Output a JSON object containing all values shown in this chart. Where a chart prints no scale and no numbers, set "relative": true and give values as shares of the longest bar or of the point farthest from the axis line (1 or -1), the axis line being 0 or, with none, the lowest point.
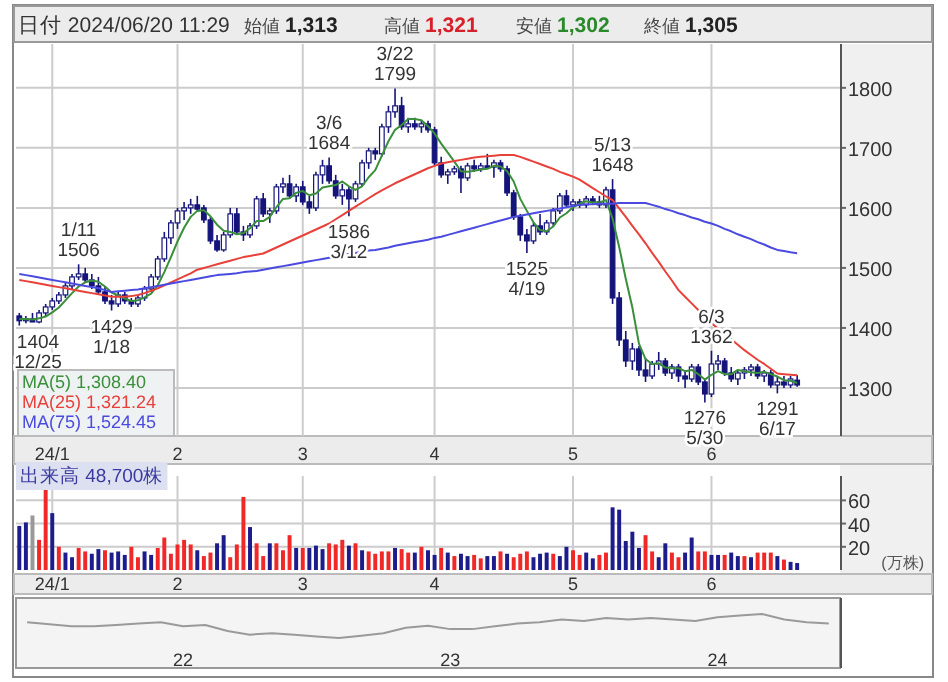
{
  "chart_data": [
    {
      "type": "candlestick",
      "title": "日付 2024/06/20 11:29",
      "grid": true,
      "legend": "bottom left",
      "ylim": [
        1220,
        1873
      ],
      "yticks": [
        1300,
        1400,
        1500,
        1600,
        1700,
        1800
      ],
      "color": "#14147a",
      "annotations": [
        "始値 1,313",
        "高値 1,321",
        "安値 1,302",
        "終値 1,305",
        {
          "text": "1404\n12/25",
          "y": 1404
        },
        {
          "text": "1/11\n1506",
          "y": 1506
        },
        {
          "text": "1429\n1/18",
          "y": 1429
        },
        {
          "text": "3/6\n1684",
          "y": 1684
        },
        {
          "text": "1586\n3/12",
          "y": 1586
        },
        {
          "text": "3/22\n1799",
          "y": 1799
        },
        {
          "text": "1525\n4/19",
          "y": 1525
        },
        {
          "text": "5/13\n1648",
          "y": 1648
        },
        {
          "text": "1276\n5/30",
          "y": 1276
        },
        {
          "text": "6/3\n1362",
          "y": 1362
        },
        {
          "text": "1291\n6/17",
          "y": 1291
        }
      ],
      "categories": [
        null,
        null,
        null,
        null,
        null,
        "24/1",
        null,
        null,
        null,
        null,
        null,
        null,
        null,
        null,
        null,
        null,
        null,
        null,
        null,
        null,
        null,
        null,
        null,
        null,
        "2",
        null,
        null,
        null,
        null,
        null,
        null,
        null,
        null,
        null,
        null,
        null,
        null,
        null,
        null,
        null,
        null,
        null,
        null,
        "3",
        null,
        null,
        null,
        null,
        null,
        null,
        null,
        null,
        null,
        null,
        null,
        null,
        null,
        null,
        null,
        null,
        null,
        null,
        null,
        "4",
        null,
        null,
        null,
        null,
        null,
        null,
        null,
        null,
        null,
        null,
        null,
        null,
        null,
        null,
        null,
        null,
        null,
        null,
        null,
        null,
        "5",
        null,
        null,
        null,
        null,
        null,
        null,
        null,
        null,
        null,
        null,
        null,
        null,
        null,
        null,
        null,
        null,
        null,
        null,
        null,
        null,
        "6",
        null,
        null,
        null,
        null,
        null,
        null,
        null,
        null,
        null,
        null,
        null,
        null,
        null
      ],
      "ohlc": [
        [
          1420,
          1425,
          1404,
          1412
        ],
        [
          1412,
          1420,
          1408,
          1415
        ],
        [
          1415,
          1425,
          1410,
          1410
        ],
        [
          1410,
          1430,
          1408,
          1425
        ],
        [
          1425,
          1440,
          1420,
          1435
        ],
        [
          1435,
          1450,
          1430,
          1445
        ],
        [
          1445,
          1460,
          1440,
          1455
        ],
        [
          1455,
          1475,
          1450,
          1470
        ],
        [
          1470,
          1490,
          1465,
          1485
        ],
        [
          1485,
          1506,
          1480,
          1490
        ],
        [
          1490,
          1500,
          1475,
          1480
        ],
        [
          1480,
          1490,
          1465,
          1470
        ],
        [
          1470,
          1485,
          1455,
          1460
        ],
        [
          1460,
          1470,
          1440,
          1445
        ],
        [
          1445,
          1455,
          1429,
          1440
        ],
        [
          1440,
          1460,
          1435,
          1455
        ],
        [
          1455,
          1460,
          1440,
          1445
        ],
        [
          1445,
          1450,
          1435,
          1440
        ],
        [
          1440,
          1455,
          1435,
          1450
        ],
        [
          1450,
          1470,
          1445,
          1465
        ],
        [
          1465,
          1490,
          1460,
          1485
        ],
        [
          1485,
          1520,
          1480,
          1515
        ],
        [
          1515,
          1560,
          1510,
          1550
        ],
        [
          1550,
          1580,
          1540,
          1575
        ],
        [
          1575,
          1600,
          1565,
          1595
        ],
        [
          1595,
          1610,
          1580,
          1600
        ],
        [
          1600,
          1615,
          1590,
          1605
        ],
        [
          1605,
          1620,
          1595,
          1598
        ],
        [
          1600,
          1605,
          1575,
          1580
        ],
        [
          1580,
          1585,
          1540,
          1545
        ],
        [
          1545,
          1555,
          1527,
          1530
        ],
        [
          1530,
          1560,
          1527,
          1555
        ],
        [
          1555,
          1600,
          1550,
          1590
        ],
        [
          1590,
          1600,
          1555,
          1560
        ],
        [
          1560,
          1570,
          1545,
          1555
        ],
        [
          1555,
          1575,
          1550,
          1570
        ],
        [
          1570,
          1620,
          1565,
          1615
        ],
        [
          1615,
          1625,
          1585,
          1590
        ],
        [
          1590,
          1600,
          1575,
          1595
        ],
        [
          1595,
          1640,
          1590,
          1635
        ],
        [
          1635,
          1650,
          1625,
          1640
        ],
        [
          1640,
          1655,
          1615,
          1620
        ],
        [
          1620,
          1640,
          1610,
          1635
        ],
        [
          1635,
          1645,
          1605,
          1610
        ],
        [
          1610,
          1620,
          1590,
          1600
        ],
        [
          1600,
          1660,
          1595,
          1655
        ],
        [
          1655,
          1680,
          1640,
          1670
        ],
        [
          1670,
          1684,
          1640,
          1645
        ],
        [
          1645,
          1655,
          1615,
          1620
        ],
        [
          1620,
          1640,
          1605,
          1630
        ],
        [
          1630,
          1635,
          1586,
          1615
        ],
        [
          1615,
          1645,
          1610,
          1640
        ],
        [
          1640,
          1680,
          1635,
          1675
        ],
        [
          1675,
          1700,
          1665,
          1695
        ],
        [
          1695,
          1700,
          1680,
          1690
        ],
        [
          1690,
          1740,
          1685,
          1735
        ],
        [
          1735,
          1770,
          1725,
          1760
        ],
        [
          1760,
          1799,
          1750,
          1770
        ],
        [
          1770,
          1785,
          1730,
          1735
        ],
        [
          1735,
          1750,
          1725,
          1740
        ],
        [
          1740,
          1750,
          1730,
          1735
        ],
        [
          1735,
          1745,
          1725,
          1740
        ],
        [
          1740,
          1745,
          1725,
          1730
        ],
        [
          1730,
          1735,
          1670,
          1675
        ],
        [
          1675,
          1685,
          1650,
          1655
        ],
        [
          1655,
          1665,
          1640,
          1660
        ],
        [
          1660,
          1670,
          1655,
          1665
        ],
        [
          1665,
          1670,
          1625,
          1650
        ],
        [
          1650,
          1675,
          1645,
          1670
        ],
        [
          1670,
          1680,
          1660,
          1665
        ],
        [
          1665,
          1675,
          1660,
          1670
        ],
        [
          1670,
          1690,
          1665,
          1668
        ],
        [
          1668,
          1680,
          1650,
          1675
        ],
        [
          1675,
          1680,
          1660,
          1665
        ],
        [
          1665,
          1670,
          1620,
          1625
        ],
        [
          1625,
          1630,
          1580,
          1585
        ],
        [
          1585,
          1590,
          1545,
          1555
        ],
        [
          1555,
          1565,
          1525,
          1545
        ],
        [
          1545,
          1575,
          1540,
          1570
        ],
        [
          1570,
          1590,
          1555,
          1560
        ],
        [
          1560,
          1580,
          1555,
          1575
        ],
        [
          1575,
          1600,
          1570,
          1595
        ],
        [
          1595,
          1625,
          1590,
          1620
        ],
        [
          1620,
          1630,
          1600,
          1605
        ],
        [
          1605,
          1615,
          1595,
          1610
        ],
        [
          1610,
          1615,
          1600,
          1605
        ],
        [
          1605,
          1620,
          1600,
          1615
        ],
        [
          1615,
          1620,
          1605,
          1610
        ],
        [
          1610,
          1620,
          1600,
          1605
        ],
        [
          1605,
          1635,
          1600,
          1630
        ],
        [
          1630,
          1648,
          1440,
          1450
        ],
        [
          1450,
          1460,
          1370,
          1380
        ],
        [
          1380,
          1395,
          1335,
          1345
        ],
        [
          1345,
          1375,
          1330,
          1365
        ],
        [
          1365,
          1370,
          1320,
          1330
        ],
        [
          1330,
          1350,
          1310,
          1320
        ],
        [
          1320,
          1345,
          1315,
          1340
        ],
        [
          1340,
          1360,
          1330,
          1345
        ],
        [
          1345,
          1350,
          1320,
          1325
        ],
        [
          1325,
          1340,
          1315,
          1335
        ],
        [
          1335,
          1340,
          1310,
          1320
        ],
        [
          1320,
          1330,
          1300,
          1315
        ],
        [
          1315,
          1340,
          1310,
          1335
        ],
        [
          1335,
          1340,
          1305,
          1310
        ],
        [
          1310,
          1315,
          1276,
          1290
        ],
        [
          1290,
          1362,
          1285,
          1340
        ],
        [
          1340,
          1355,
          1330,
          1345
        ],
        [
          1345,
          1350,
          1320,
          1325
        ],
        [
          1325,
          1335,
          1310,
          1315
        ],
        [
          1315,
          1330,
          1305,
          1325
        ],
        [
          1325,
          1335,
          1315,
          1330
        ],
        [
          1330,
          1340,
          1320,
          1335
        ],
        [
          1335,
          1340,
          1315,
          1320
        ],
        [
          1320,
          1330,
          1310,
          1325
        ],
        [
          1325,
          1330,
          1300,
          1305
        ],
        [
          1305,
          1320,
          1291,
          1310
        ],
        [
          1310,
          1320,
          1300,
          1305
        ],
        [
          1305,
          1320,
          1300,
          1315
        ],
        [
          1313,
          1321,
          1302,
          1305
        ]
      ],
      "series": [
        {
          "type": "line",
          "name": "MA(5) 1,308.40",
          "color": "#3a8f3a",
          "values": [
            1415,
            1415,
            1414,
            1416,
            1419,
            1426,
            1434,
            1446,
            1458,
            1469,
            1476,
            1479,
            1477,
            1469,
            1459,
            1454,
            1449,
            1445,
            1446,
            1451,
            1457,
            1471,
            1493,
            1518,
            1544,
            1567,
            1585,
            1595,
            1596,
            1586,
            1572,
            1562,
            1560,
            1556,
            1558,
            1566,
            1578,
            1578,
            1585,
            1601,
            1615,
            1616,
            1625,
            1628,
            1621,
            1624,
            1634,
            1636,
            1638,
            1644,
            1636,
            1630,
            1636,
            1651,
            1663,
            1687,
            1711,
            1730,
            1738,
            1748,
            1748,
            1746,
            1736,
            1724,
            1707,
            1692,
            1677,
            1661,
            1660,
            1662,
            1664,
            1665,
            1670,
            1669,
            1661,
            1644,
            1615,
            1595,
            1576,
            1563,
            1561,
            1569,
            1584,
            1591,
            1601,
            1607,
            1611,
            1609,
            1609,
            1613,
            1582,
            1535,
            1482,
            1434,
            1374,
            1348,
            1340,
            1341,
            1334,
            1333,
            1333,
            1328,
            1330,
            1323,
            1314,
            1322,
            1328,
            1323,
            1323,
            1330,
            1328,
            1326,
            1325,
            1327,
            1323,
            1319,
            1313,
            1312,
            1308.4
          ]
        },
        {
          "type": "line",
          "name": "MA(25) 1,321.24",
          "color": "#e8413a",
          "values": [
            1480,
            1478,
            1476,
            1474,
            1472,
            1470,
            1468,
            1466,
            1464,
            1462,
            1460,
            1458,
            1456,
            1454,
            1452,
            1452,
            1452,
            1453,
            1455,
            1458,
            1462,
            1466,
            1471,
            1476,
            1481,
            1486,
            1491,
            1497,
            1500,
            1503,
            1506,
            1509,
            1512,
            1515,
            1518,
            1520,
            1522,
            1524,
            1529,
            1534,
            1539,
            1544,
            1549,
            1554,
            1559,
            1564,
            1569,
            1574,
            1581,
            1588,
            1595,
            1602,
            1609,
            1616,
            1623,
            1629,
            1635,
            1641,
            1646,
            1651,
            1656,
            1661,
            1666,
            1670,
            1674,
            1676,
            1678,
            1680,
            1682,
            1684,
            1685,
            1686,
            1687,
            1688,
            1688,
            1688,
            1685,
            1681,
            1677,
            1673,
            1669,
            1665,
            1660,
            1656,
            1652,
            1647,
            1640,
            1633,
            1626,
            1619,
            1613,
            1599,
            1585,
            1570,
            1556,
            1541,
            1525,
            1510,
            1494,
            1479,
            1463,
            1452,
            1441,
            1430,
            1419,
            1408,
            1399,
            1390,
            1381,
            1372,
            1363,
            1355,
            1347,
            1340,
            1332,
            1324,
            1323,
            1322,
            1321.24
          ]
        },
        {
          "type": "line",
          "name": "MA(75) 1,524.45",
          "color": "#4a4ae0",
          "values": [
            1490,
            1488,
            1486,
            1484,
            1482,
            1480,
            1478,
            1476,
            1474,
            1472,
            1470,
            1468,
            1466,
            1463,
            1460,
            1461,
            1462,
            1463,
            1464,
            1466,
            1468,
            1470,
            1472,
            1474,
            1476,
            1478,
            1480,
            1482,
            1484,
            1486,
            1488,
            1489,
            1490,
            1491,
            1493,
            1494,
            1495,
            1497,
            1499,
            1501,
            1503,
            1505,
            1507,
            1509,
            1511,
            1513,
            1515,
            1517,
            1519,
            1521,
            1523,
            1525,
            1527,
            1529,
            1530,
            1532,
            1534,
            1537,
            1539,
            1541,
            1543,
            1545,
            1547,
            1550,
            1552,
            1555,
            1558,
            1561,
            1564,
            1567,
            1570,
            1573,
            1576,
            1579,
            1582,
            1585,
            1587,
            1589,
            1591,
            1593,
            1595,
            1597,
            1599,
            1601,
            1603,
            1605,
            1606,
            1606,
            1607,
            1607,
            1607,
            1608,
            1608,
            1608,
            1608,
            1608,
            1605,
            1602,
            1598,
            1595,
            1591,
            1588,
            1584,
            1581,
            1577,
            1574,
            1570,
            1565,
            1561,
            1556,
            1552,
            1548,
            1543,
            1539,
            1534,
            1530,
            1528,
            1526,
            1524.45
          ]
        }
      ]
    },
    {
      "type": "bar",
      "title": "出来高 48,700株",
      "ylabel": "(万株)",
      "grid": true,
      "ylim": [
        0,
        81
      ],
      "yticks": [
        20,
        40,
        60
      ],
      "categories": [
        null,
        null,
        null,
        null,
        null,
        "24/1",
        null,
        null,
        null,
        null,
        null,
        null,
        null,
        null,
        null,
        null,
        null,
        null,
        null,
        null,
        null,
        null,
        null,
        null,
        "2",
        null,
        null,
        null,
        null,
        null,
        null,
        null,
        null,
        null,
        null,
        null,
        null,
        null,
        null,
        null,
        null,
        null,
        null,
        "3",
        null,
        null,
        null,
        null,
        null,
        null,
        null,
        null,
        null,
        null,
        null,
        null,
        null,
        null,
        null,
        null,
        null,
        null,
        null,
        "4",
        null,
        null,
        null,
        null,
        null,
        null,
        null,
        null,
        null,
        null,
        null,
        null,
        null,
        null,
        null,
        null,
        null,
        null,
        null,
        null,
        "5",
        null,
        null,
        null,
        null,
        null,
        null,
        null,
        null,
        null,
        null,
        null,
        null,
        null,
        null,
        null,
        null,
        null,
        null,
        null,
        null,
        "6",
        null,
        null,
        null,
        null,
        null,
        null,
        null,
        null,
        null,
        null,
        null,
        null,
        null
      ],
      "values": [
        38,
        41,
        47,
        26,
        70,
        49,
        20,
        15,
        11,
        19,
        16,
        14,
        18,
        17,
        15,
        16,
        13,
        20,
        11,
        16,
        13,
        19,
        28,
        14,
        22,
        26,
        22,
        17,
        12,
        15,
        23,
        30,
        11,
        22,
        63,
        37,
        23,
        12,
        23,
        23,
        17,
        30,
        19,
        19,
        19,
        21,
        18,
        23,
        22,
        26,
        21,
        23,
        17,
        16,
        14,
        16,
        16,
        19,
        18,
        15,
        15,
        20,
        17,
        13,
        19,
        15,
        12,
        14,
        12,
        13,
        10,
        12,
        12,
        16,
        14,
        11,
        14,
        16,
        11,
        14,
        15,
        14,
        12,
        20,
        17,
        13,
        15,
        10,
        13,
        15,
        54,
        52,
        25,
        33,
        19,
        30,
        16,
        11,
        23,
        15,
        11,
        15,
        28,
        16,
        16,
        13,
        13,
        13,
        15,
        12,
        12,
        11,
        15,
        15,
        15,
        12,
        9,
        7,
        6
      ],
      "colors": [
        "#1c1c8c",
        "#1c1c8c",
        "#999999",
        "#f02828",
        "#f02828",
        "#1c1c8c",
        "#f02828",
        "#1c1c8c",
        "#1c1c8c",
        "#f02828",
        "#f02828",
        "#1c1c8c",
        "#1c1c8c",
        "#f02828",
        "#1c1c8c",
        "#1c1c8c",
        "#1c1c8c",
        "#f02828",
        "#f02828",
        "#1c1c8c",
        "#1c1c8c",
        "#f02828",
        "#f02828",
        "#f02828",
        "#f02828",
        "#f02828",
        "#f02828",
        "#1c1c8c",
        "#f02828",
        "#f02828",
        "#1c1c8c",
        "#1c1c8c",
        "#f02828",
        "#f02828",
        "#f02828",
        "#1c1c8c",
        "#f02828",
        "#f02828",
        "#1c1c8c",
        "#f02828",
        "#f02828",
        "#f02828",
        "#1c1c8c",
        "#f02828",
        "#1c1c8c",
        "#1c1c8c",
        "#1c1c8c",
        "#f02828",
        "#f02828",
        "#f02828",
        "#1c1c8c",
        "#f02828",
        "#1c1c8c",
        "#f02828",
        "#f02828",
        "#f02828",
        "#f02828",
        "#1c1c8c",
        "#f02828",
        "#f02828",
        "#1c1c8c",
        "#f02828",
        "#1c1c8c",
        "#1c1c8c",
        "#f02828",
        "#1c1c8c",
        "#f02828",
        "#1c1c8c",
        "#1c1c8c",
        "#f02828",
        "#f02828",
        "#1c1c8c",
        "#1c1c8c",
        "#f02828",
        "#1c1c8c",
        "#f02828",
        "#f02828",
        "#f02828",
        "#1c1c8c",
        "#1c1c8c",
        "#1c1c8c",
        "#f02828",
        "#1c1c8c",
        "#1c1c8c",
        "#f02828",
        "#f02828",
        "#1c1c8c",
        "#1c1c8c",
        "#f02828",
        "#f02828",
        "#1c1c8c",
        "#1c1c8c",
        "#1c1c8c",
        "#1c1c8c",
        "#1c1c8c",
        "#f02828",
        "#f02828",
        "#1c1c8c",
        "#1c1c8c",
        "#f02828",
        "#f02828",
        "#1c1c8c",
        "#1c1c8c",
        "#f02828",
        "#f02828",
        "#1c1c8c",
        "#1c1c8c",
        "#f02828",
        "#1c1c8c",
        "#1c1c8c",
        "#f02828",
        "#1c1c8c",
        "#f02828",
        "#f02828",
        "#f02828",
        "#1c1c8c",
        "#f02828",
        "#1c1c8c",
        "#1c1c8c"
      ]
    },
    {
      "type": "line",
      "relative": true,
      "color": "#9a9a9a",
      "categories": [
        null,
        null,
        null,
        null,
        null,
        null,
        null,
        "22",
        null,
        null,
        null,
        null,
        null,
        null,
        null,
        null,
        null,
        null,
        null,
        "23",
        null,
        null,
        null,
        null,
        null,
        null,
        null,
        null,
        null,
        null,
        null,
        "24",
        null,
        null,
        null,
        null,
        null
      ],
      "values": [
        0.66,
        0.57,
        0.49,
        0.49,
        0.54,
        0.6,
        0.66,
        0.49,
        0.54,
        0.29,
        0.14,
        0.2,
        0.14,
        0.06,
        0,
        0.09,
        0.2,
        0.43,
        0.51,
        0.37,
        0.37,
        0.49,
        0.6,
        0.66,
        0.77,
        0.71,
        0.83,
        0.77,
        0.83,
        0.77,
        0.71,
        0.86,
        0.94,
        1,
        0.77,
        0.66,
        0.6
      ]
    }
  ]
}
